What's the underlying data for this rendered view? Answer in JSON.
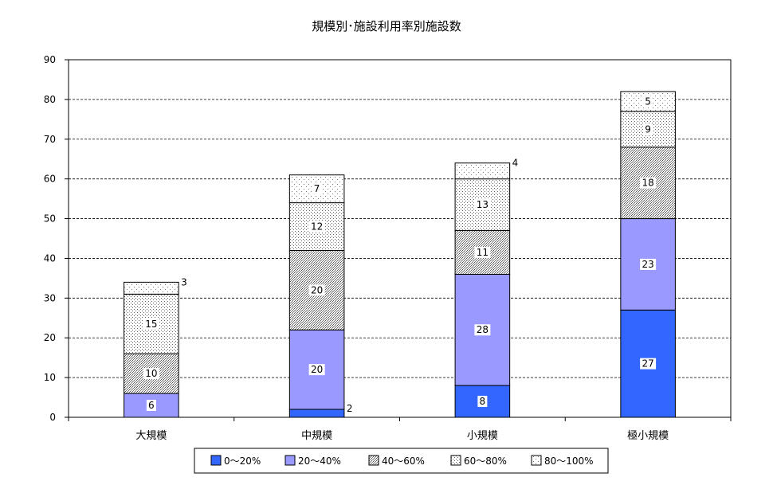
{
  "chart_data": {
    "type": "bar",
    "stacked": true,
    "title": "規模別･施設利用率別施設数",
    "categories": [
      "大規模",
      "中規模",
      "小規模",
      "極小規模"
    ],
    "series": [
      {
        "name": "0～20%",
        "values": [
          0,
          2,
          8,
          27
        ],
        "color": "#3366ff",
        "pattern": "solid"
      },
      {
        "name": "20～40%",
        "values": [
          6,
          20,
          28,
          23
        ],
        "color": "#9999ff",
        "pattern": "solid"
      },
      {
        "name": "40～60%",
        "values": [
          10,
          20,
          11,
          18
        ],
        "color": "#c8c8d8",
        "pattern": "dense-dots"
      },
      {
        "name": "60～80%",
        "values": [
          15,
          12,
          13,
          9
        ],
        "color": "#e6e6f0",
        "pattern": "medium-dots"
      },
      {
        "name": "80～100%",
        "values": [
          3,
          7,
          4,
          5
        ],
        "color": "#f4f4fa",
        "pattern": "sparse-dots"
      }
    ],
    "data_labels": [
      [
        "",
        "6",
        "10",
        "15",
        "3"
      ],
      [
        "2",
        "20",
        "20",
        "12",
        "7"
      ],
      [
        "8",
        "28",
        "11",
        "13",
        "4"
      ],
      [
        "27",
        "23",
        "18",
        "9",
        "5"
      ]
    ],
    "y_ticks": [
      "0",
      "10",
      "20",
      "30",
      "40",
      "50",
      "60",
      "70",
      "80",
      "90"
    ],
    "ylim": [
      0,
      90
    ],
    "grid": true,
    "legend_position": "bottom"
  }
}
